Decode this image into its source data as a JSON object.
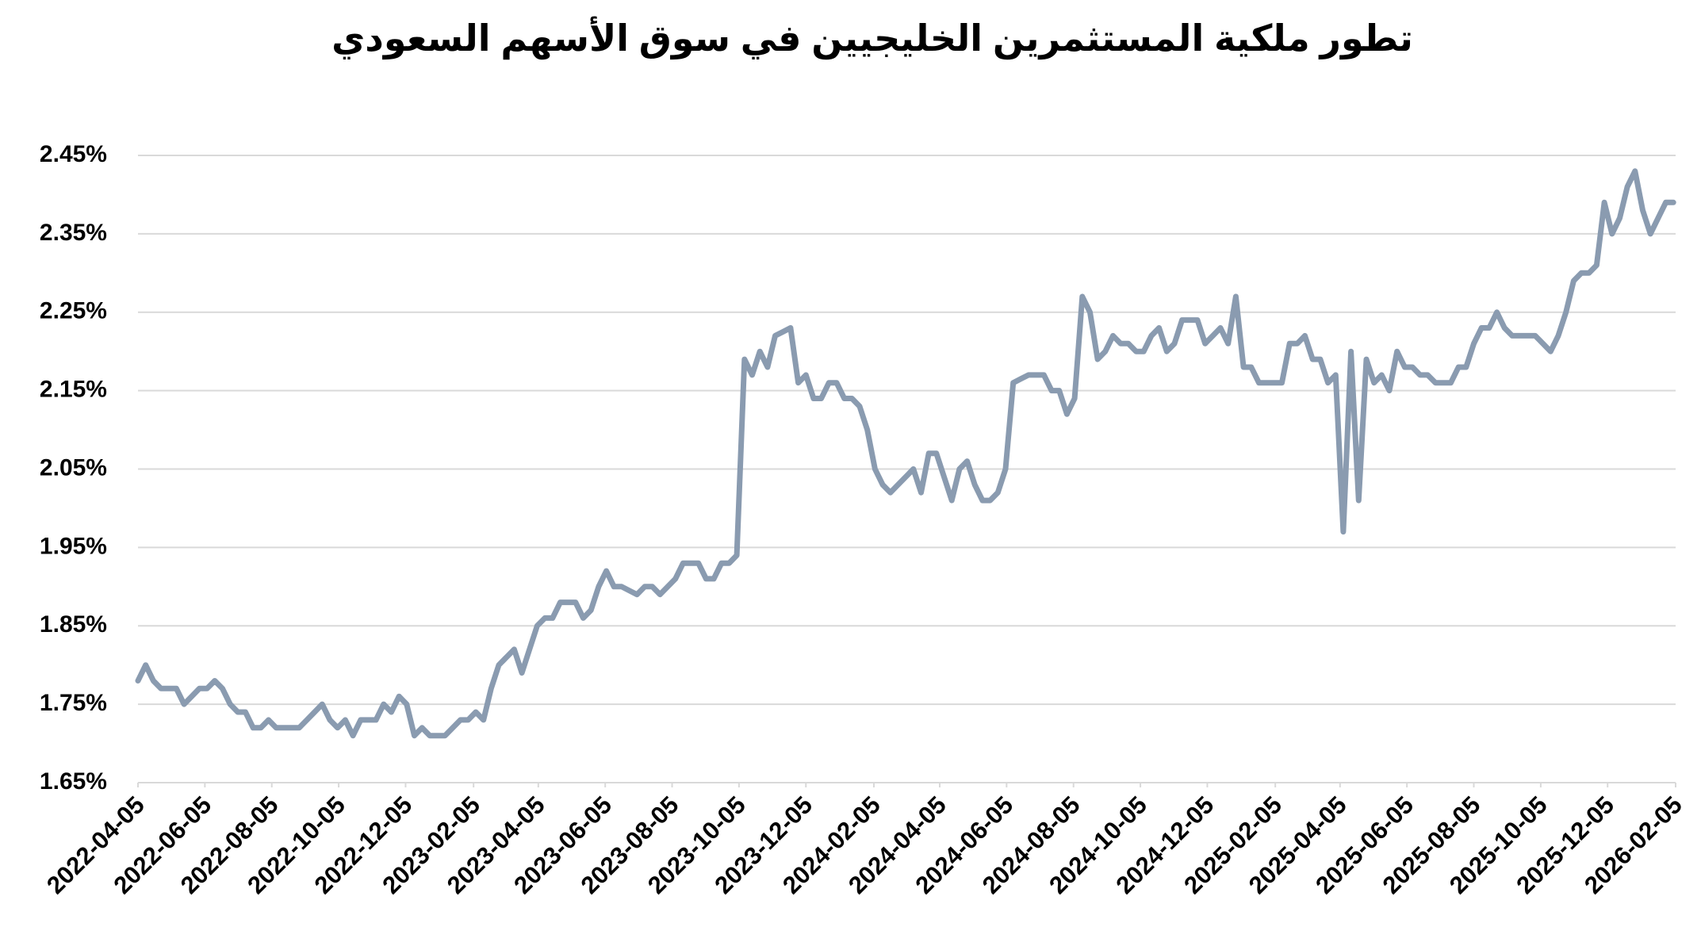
{
  "chart_data": {
    "type": "line",
    "title": "تطور ملكية المستثمرين الخليجيين في سوق الأسهم السعودي",
    "color": "#8a9bb0",
    "grid": true,
    "x": [
      "2022-04-05",
      "2022-04-12",
      "2022-04-19",
      "2022-04-26",
      "2022-05-03",
      "2022-05-10",
      "2022-05-17",
      "2022-05-24",
      "2022-05-31",
      "2022-06-07",
      "2022-06-14",
      "2022-06-21",
      "2022-06-28",
      "2022-07-05",
      "2022-07-12",
      "2022-07-19",
      "2022-07-26",
      "2022-08-02",
      "2022-08-09",
      "2022-08-16",
      "2022-08-23",
      "2022-08-30",
      "2022-09-06",
      "2022-09-13",
      "2022-09-20",
      "2022-09-27",
      "2022-10-04",
      "2022-10-11",
      "2022-10-18",
      "2022-10-25",
      "2022-11-01",
      "2022-11-08",
      "2022-11-15",
      "2022-11-22",
      "2022-11-29",
      "2022-12-06",
      "2022-12-13",
      "2022-12-20",
      "2022-12-27",
      "2023-01-03",
      "2023-01-10",
      "2023-01-17",
      "2023-01-24",
      "2023-01-31",
      "2023-02-07",
      "2023-02-14",
      "2023-02-21",
      "2023-02-28",
      "2023-03-07",
      "2023-03-14",
      "2023-03-21",
      "2023-03-28",
      "2023-04-04",
      "2023-04-11",
      "2023-04-18",
      "2023-04-25",
      "2023-05-02",
      "2023-05-09",
      "2023-05-16",
      "2023-05-23",
      "2023-05-30",
      "2023-06-06",
      "2023-06-13",
      "2023-06-20",
      "2023-06-27",
      "2023-07-04",
      "2023-07-11",
      "2023-07-18",
      "2023-07-25",
      "2023-08-01",
      "2023-08-08",
      "2023-08-15",
      "2023-08-22",
      "2023-08-29",
      "2023-09-05",
      "2023-09-12",
      "2023-09-19",
      "2023-09-26",
      "2023-10-03",
      "2023-10-10",
      "2023-10-17",
      "2023-10-24",
      "2023-10-31",
      "2023-11-07",
      "2023-11-14",
      "2023-11-21",
      "2023-11-28",
      "2023-12-05",
      "2023-12-12",
      "2023-12-19",
      "2023-12-26",
      "2024-01-02",
      "2024-01-09",
      "2024-01-16",
      "2024-01-23",
      "2024-01-30",
      "2024-02-06",
      "2024-02-13",
      "2024-02-20",
      "2024-02-27",
      "2024-03-05",
      "2024-03-12",
      "2024-03-19",
      "2024-03-26",
      "2024-04-02",
      "2024-04-09",
      "2024-04-16",
      "2024-04-23",
      "2024-04-30",
      "2024-05-07",
      "2024-05-14",
      "2024-05-21",
      "2024-05-28",
      "2024-06-04",
      "2024-06-11",
      "2024-06-18",
      "2024-06-25",
      "2024-07-02",
      "2024-07-09",
      "2024-07-16",
      "2024-07-23",
      "2024-07-30",
      "2024-08-06",
      "2024-08-13",
      "2024-08-20",
      "2024-08-27",
      "2024-09-03",
      "2024-09-10",
      "2024-09-17",
      "2024-09-24",
      "2024-10-01",
      "2024-10-08",
      "2024-10-15",
      "2024-10-22",
      "2024-10-29",
      "2024-11-05",
      "2024-11-12",
      "2024-11-19",
      "2024-11-26",
      "2024-12-03",
      "2024-12-10",
      "2024-12-17",
      "2024-12-24",
      "2024-12-31",
      "2025-01-07",
      "2025-01-14",
      "2025-01-21",
      "2025-01-28",
      "2025-02-04",
      "2025-02-11",
      "2025-02-18",
      "2025-02-25",
      "2025-03-04",
      "2025-03-11",
      "2025-03-18",
      "2025-03-25",
      "2025-04-01",
      "2025-04-08",
      "2025-04-15",
      "2025-04-22",
      "2025-04-29",
      "2025-05-06",
      "2025-05-13",
      "2025-05-20",
      "2025-05-27",
      "2025-06-03",
      "2025-06-10",
      "2025-06-17",
      "2025-06-24",
      "2025-07-01",
      "2025-07-08",
      "2025-07-15",
      "2025-07-22",
      "2025-07-29",
      "2025-08-05",
      "2025-08-12",
      "2025-08-19",
      "2025-08-26",
      "2025-09-02",
      "2025-09-09",
      "2025-09-16",
      "2025-09-23",
      "2025-09-30",
      "2025-10-07",
      "2025-10-14",
      "2025-10-21",
      "2025-10-28",
      "2025-11-04",
      "2025-11-11",
      "2025-11-18",
      "2025-11-25",
      "2025-12-02",
      "2025-12-09",
      "2025-12-16",
      "2025-12-23",
      "2025-12-30",
      "2026-01-06",
      "2026-01-13",
      "2026-01-20",
      "2026-01-27",
      "2026-02-03"
    ],
    "values": [
      1.78,
      1.8,
      1.78,
      1.77,
      1.77,
      1.77,
      1.75,
      1.76,
      1.77,
      1.77,
      1.78,
      1.77,
      1.75,
      1.74,
      1.74,
      1.72,
      1.72,
      1.73,
      1.72,
      1.72,
      1.72,
      1.72,
      1.73,
      1.74,
      1.75,
      1.73,
      1.72,
      1.73,
      1.71,
      1.73,
      1.73,
      1.73,
      1.75,
      1.74,
      1.76,
      1.75,
      1.71,
      1.72,
      1.71,
      1.71,
      1.71,
      1.72,
      1.73,
      1.73,
      1.74,
      1.73,
      1.77,
      1.8,
      1.81,
      1.82,
      1.79,
      1.82,
      1.85,
      1.86,
      1.86,
      1.88,
      1.88,
      1.88,
      1.86,
      1.87,
      1.9,
      1.92,
      1.9,
      1.9,
      1.895,
      1.89,
      1.9,
      1.9,
      1.89,
      1.9,
      1.91,
      1.93,
      1.93,
      1.93,
      1.91,
      1.91,
      1.93,
      1.93,
      1.94,
      2.19,
      2.17,
      2.2,
      2.18,
      2.22,
      2.225,
      2.23,
      2.16,
      2.17,
      2.14,
      2.14,
      2.16,
      2.16,
      2.14,
      2.14,
      2.13,
      2.1,
      2.05,
      2.03,
      2.02,
      2.03,
      2.04,
      2.05,
      2.02,
      2.07,
      2.07,
      2.04,
      2.01,
      2.05,
      2.06,
      2.03,
      2.01,
      2.01,
      2.02,
      2.05,
      2.16,
      2.165,
      2.17,
      2.17,
      2.17,
      2.15,
      2.15,
      2.12,
      2.14,
      2.27,
      2.25,
      2.19,
      2.2,
      2.22,
      2.21,
      2.21,
      2.2,
      2.2,
      2.22,
      2.23,
      2.2,
      2.21,
      2.24,
      2.24,
      2.24,
      2.21,
      2.22,
      2.23,
      2.21,
      2.27,
      2.18,
      2.18,
      2.16,
      2.16,
      2.16,
      2.16,
      2.21,
      2.21,
      2.22,
      2.19,
      2.19,
      2.16,
      2.17,
      1.97,
      2.2,
      2.01,
      2.19,
      2.16,
      2.17,
      2.15,
      2.2,
      2.18,
      2.18,
      2.17,
      2.17,
      2.16,
      2.16,
      2.16,
      2.18,
      2.18,
      2.21,
      2.23,
      2.23,
      2.25,
      2.23,
      2.22,
      2.22,
      2.22,
      2.22,
      2.21,
      2.2,
      2.22,
      2.25,
      2.29,
      2.3,
      2.3,
      2.31,
      2.39,
      2.35,
      2.37,
      2.41,
      2.43,
      2.38,
      2.35,
      2.37,
      2.39,
      2.39
    ],
    "xlim": [
      "2022-04-05",
      "2026-02-05"
    ],
    "xticks": [
      "2022-04-05",
      "2022-06-05",
      "2022-08-05",
      "2022-10-05",
      "2022-12-05",
      "2023-02-05",
      "2023-04-05",
      "2023-06-05",
      "2023-08-05",
      "2023-10-05",
      "2023-12-05",
      "2024-02-05",
      "2024-04-05",
      "2024-06-05",
      "2024-08-05",
      "2024-10-05",
      "2024-12-05",
      "2025-02-05",
      "2025-04-05",
      "2025-06-05",
      "2025-08-05",
      "2025-10-05",
      "2025-12-05",
      "2026-02-05"
    ],
    "ylim": [
      1.65,
      2.45
    ],
    "yticks": [
      {
        "value": 1.65,
        "label": "1.65%"
      },
      {
        "value": 1.75,
        "label": "1.75%"
      },
      {
        "value": 1.85,
        "label": "1.85%"
      },
      {
        "value": 1.95,
        "label": "1.95%"
      },
      {
        "value": 2.05,
        "label": "2.05%"
      },
      {
        "value": 2.15,
        "label": "2.15%"
      },
      {
        "value": 2.25,
        "label": "2.25%"
      },
      {
        "value": 2.35,
        "label": "2.35%"
      },
      {
        "value": 2.45,
        "label": "2.45%"
      }
    ]
  }
}
